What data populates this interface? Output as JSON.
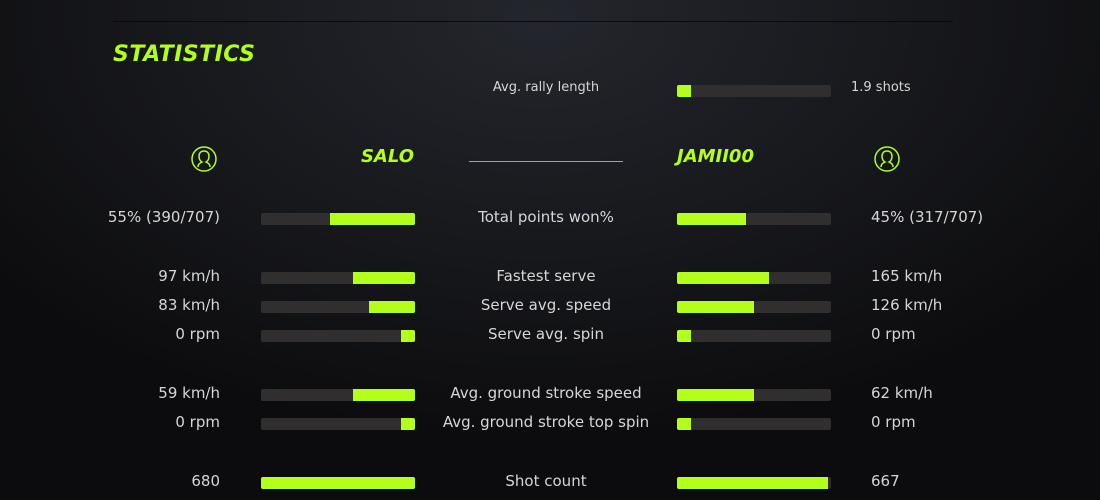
{
  "title": "STATISTICS",
  "accent": "#b2ff1c",
  "rally": {
    "label": "Avg. rally length",
    "value": "1.9 shots",
    "fill": 0.09
  },
  "players": {
    "left": {
      "name": "SALO",
      "icon": "user-icon"
    },
    "right": {
      "name": "JAMII00",
      "icon": "user-icon"
    }
  },
  "stats": [
    {
      "label": "Total points won%",
      "left": "55% (390/707)",
      "right": "45% (317/707)",
      "left_fill": 0.55,
      "right_fill": 0.45
    },
    {
      "label": "Fastest serve",
      "left": "97 km/h",
      "right": "165 km/h",
      "left_fill": 0.4,
      "right_fill": 0.6
    },
    {
      "label": "Serve avg. speed",
      "left": "83 km/h",
      "right": "126 km/h",
      "left_fill": 0.3,
      "right_fill": 0.5
    },
    {
      "label": "Serve avg. spin",
      "left": "0 rpm",
      "right": "0 rpm",
      "left_fill": 0.09,
      "right_fill": 0.09
    },
    {
      "label": "Avg. ground stroke speed",
      "left": "59 km/h",
      "right": "62 km/h",
      "left_fill": 0.4,
      "right_fill": 0.5
    },
    {
      "label": "Avg. ground stroke top spin",
      "left": "0 rpm",
      "right": "0 rpm",
      "left_fill": 0.09,
      "right_fill": 0.09
    },
    {
      "label": "Shot count",
      "left": "680",
      "right": "667",
      "left_fill": 1.0,
      "right_fill": 0.98
    }
  ]
}
